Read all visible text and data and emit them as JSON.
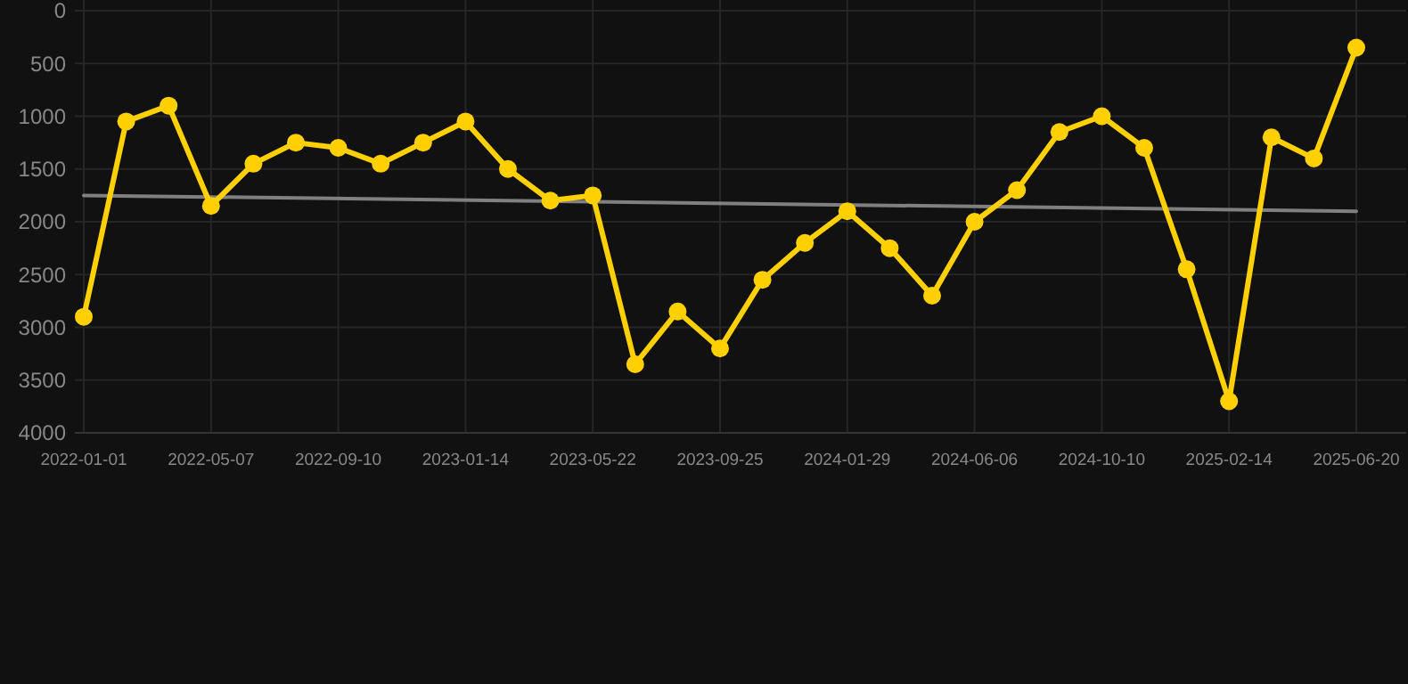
{
  "chart_data": {
    "type": "line",
    "categories": [
      "2022-01-01",
      null,
      null,
      "2022-05-07",
      null,
      null,
      "2022-09-10",
      null,
      null,
      "2023-01-14",
      null,
      null,
      "2023-05-22",
      null,
      null,
      "2023-09-25",
      null,
      null,
      "2024-01-29",
      null,
      null,
      "2024-06-06",
      null,
      null,
      "2024-10-10",
      null,
      null,
      "2025-02-14",
      null,
      null,
      "2025-06-20"
    ],
    "series": [
      {
        "color": "#ffd000",
        "marker": "circle",
        "values": [
          2900,
          1050,
          900,
          1850,
          1450,
          1250,
          1300,
          1450,
          1250,
          1050,
          1500,
          1800,
          1750,
          3350,
          2850,
          3200,
          2550,
          2200,
          1900,
          2250,
          2700,
          2000,
          1700,
          1150,
          1000,
          1300,
          2450,
          3700,
          1200,
          1400,
          350
        ]
      },
      {
        "type": "line",
        "color": "#808080",
        "marker": "none",
        "values": [
          1750,
          null,
          null,
          null,
          null,
          null,
          null,
          null,
          null,
          null,
          null,
          null,
          null,
          null,
          null,
          null,
          null,
          null,
          null,
          null,
          null,
          null,
          null,
          null,
          null,
          null,
          null,
          null,
          null,
          null,
          1900
        ]
      }
    ],
    "ylim": [
      4000,
      0
    ],
    "yticks": [
      0,
      500,
      1000,
      1500,
      2000,
      2500,
      3000,
      3500,
      4000
    ],
    "grid": true,
    "line_style": "solid"
  }
}
